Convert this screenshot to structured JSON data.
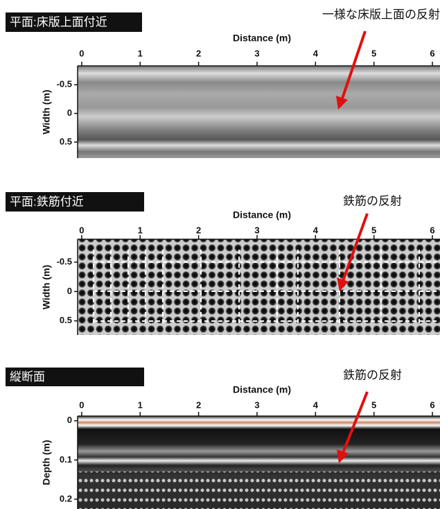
{
  "panels": [
    {
      "label": "平面:床版上面付近",
      "annotation": "一様な床版上面の反射",
      "x_label": "Distance (m)",
      "xlim": [
        -0.07,
        6.13
      ],
      "xticks": [
        0,
        1,
        2,
        3,
        4,
        5,
        6
      ],
      "y_label": "Width (m)",
      "ylim": [
        -0.83,
        0.78
      ],
      "yticks": [
        -0.5,
        0,
        0.5
      ]
    },
    {
      "label": "平面:鉄筋付近",
      "annotation": "鉄筋の反射",
      "x_label": "Distance (m)",
      "xlim": [
        -0.07,
        6.13
      ],
      "xticks": [
        0,
        1,
        2,
        3,
        4,
        5,
        6
      ],
      "y_label": "Width (m)",
      "ylim": [
        -0.89,
        0.74
      ],
      "yticks": [
        -0.5,
        0,
        0.5
      ]
    },
    {
      "label": "縦断面",
      "annotation": "鉄筋の反射",
      "x_label": "Distance (m)",
      "xlim": [
        -0.07,
        6.13
      ],
      "xticks": [
        0,
        1,
        2,
        3,
        4,
        5,
        6
      ],
      "y_label": "Depth (m)",
      "ylim": [
        -0.012,
        0.225
      ],
      "yticks": [
        0,
        0.1,
        0.2
      ]
    }
  ]
}
